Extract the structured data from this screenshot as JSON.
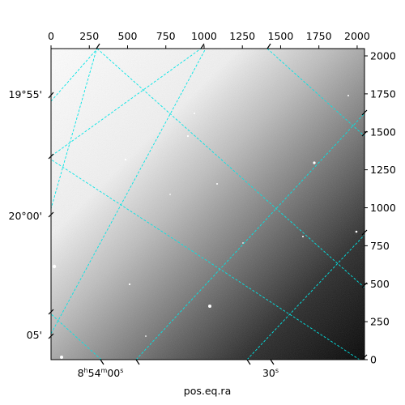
{
  "chart_data": {
    "type": "heatmap",
    "title": "",
    "xlabel": "pos.eq.ra",
    "ylabel": "",
    "pixel_axes": {
      "x": {
        "range": [
          0,
          2048
        ],
        "ticks": [
          "0",
          "250",
          "500",
          "750",
          "1000",
          "1250",
          "1500",
          "1750",
          "2000"
        ],
        "position": "top"
      },
      "y": {
        "range": [
          0,
          2048
        ],
        "ticks": [
          "0",
          "250",
          "500",
          "750",
          "1000",
          "1250",
          "1500",
          "1750",
          "2000"
        ],
        "position": "right"
      }
    },
    "world_axes": {
      "ra_ticks": [
        {
          "label": "8ʰ54ᵐ00ˢ",
          "h": "8",
          "m": "54",
          "s": "00"
        },
        {
          "label": "30ˢ",
          "s": "30"
        }
      ],
      "dec_ticks": [
        {
          "label": "19°55'"
        },
        {
          "label": "20°00'"
        },
        {
          "label": "05'"
        }
      ]
    },
    "grid": true,
    "grid_color": "#00e5e5",
    "colormap": "grayscale",
    "image_description_values": {
      "brightness_gradient": "bright at upper-left, dark at lower-right"
    }
  }
}
